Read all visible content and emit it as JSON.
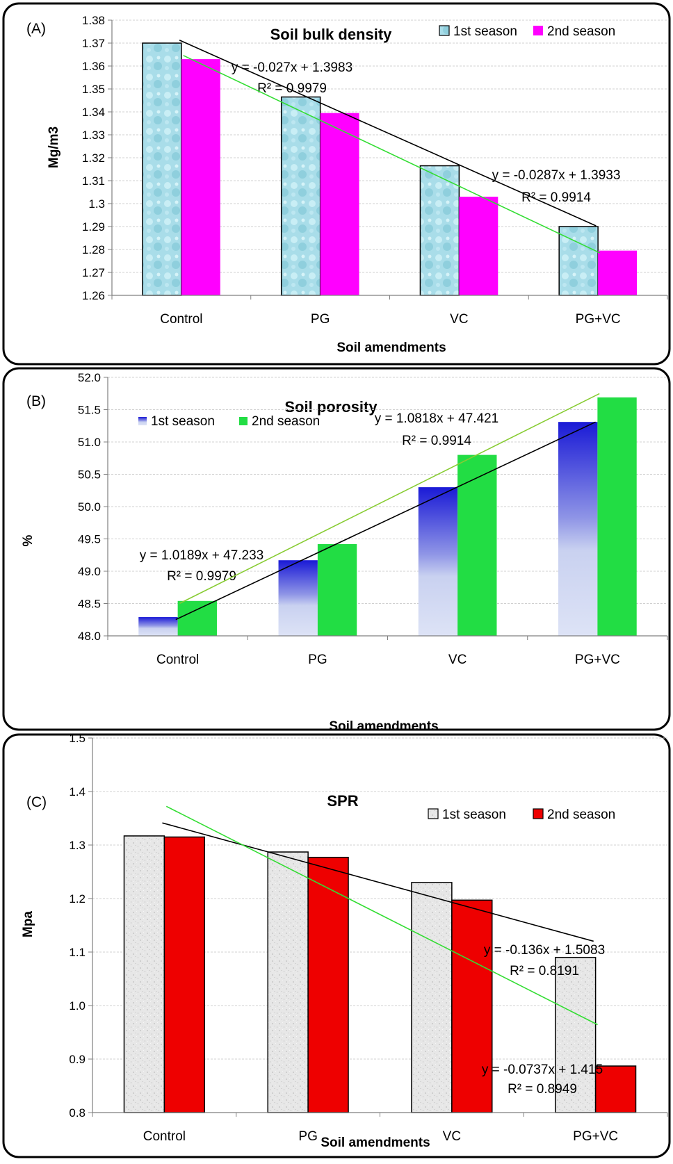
{
  "chart_data": [
    {
      "panel": "(A)",
      "type": "bar",
      "title": "Soil bulk density",
      "xlabel": "Soil amendments",
      "ylabel": "Mg/m3",
      "categories": [
        "Control",
        "PG",
        "VC",
        "PG+VC"
      ],
      "ylim": [
        1.26,
        1.38
      ],
      "yticks": [
        "1.26",
        "1.27",
        "1.28",
        "1.29",
        "1.3",
        "1.31",
        "1.32",
        "1.33",
        "1.34",
        "1.35",
        "1.36",
        "1.37",
        "1.38"
      ],
      "legend": "top-right",
      "series": [
        {
          "name": "1st season",
          "values": [
            1.37,
            1.3465,
            1.3165,
            1.29
          ],
          "color": "#a8dde8"
        },
        {
          "name": "2nd season",
          "values": [
            1.363,
            1.3395,
            1.303,
            1.2795
          ],
          "color": "#ff00ff"
        }
      ],
      "trendlines": [
        {
          "equation": "y = -0.027x + 1.3983",
          "r2": "R² = 0.9979",
          "slope": -0.027,
          "intercept": 1.3983,
          "color": "#000000"
        },
        {
          "equation": "y = -0.0287x + 1.3933",
          "r2": "R² = 0.9914",
          "slope": -0.0287,
          "intercept": 1.3933,
          "color": "#33dd33"
        }
      ]
    },
    {
      "panel": "(B)",
      "type": "bar",
      "title": "Soil porosity",
      "xlabel": "Soil amendments",
      "ylabel": "%",
      "categories": [
        "Control",
        "PG",
        "VC",
        "PG+VC"
      ],
      "ylim": [
        48.0,
        52.0
      ],
      "yticks": [
        "48.0",
        "48.5",
        "49.0",
        "49.5",
        "50.0",
        "50.5",
        "51.0",
        "51.5",
        "52.0"
      ],
      "legend": "top-left",
      "series": [
        {
          "name": "1st season",
          "values": [
            48.29,
            49.17,
            50.3,
            51.31
          ],
          "color": "#2222cc"
        },
        {
          "name": "2nd season",
          "values": [
            48.54,
            49.42,
            50.8,
            51.69
          ],
          "color": "#22dd44"
        }
      ],
      "trendlines": [
        {
          "equation": "y = 1.0189x + 47.233",
          "r2": "R² = 0.9979",
          "slope": 1.0189,
          "intercept": 47.233,
          "color": "#000000"
        },
        {
          "equation": "y = 1.0818x + 47.421",
          "r2": "R² = 0.9914",
          "slope": 1.0818,
          "intercept": 47.421,
          "color": "#88cc33"
        }
      ]
    },
    {
      "panel": "(C)",
      "type": "bar",
      "title": "SPR",
      "xlabel": "Soil amendments",
      "ylabel": "Mpa",
      "categories": [
        "Control",
        "PG",
        "VC",
        "PG+VC"
      ],
      "ylim": [
        0.8,
        1.5
      ],
      "yticks": [
        "0.8",
        "0.9",
        "1.0",
        "1.1",
        "1.2",
        "1.3",
        "1.4",
        "1.5"
      ],
      "legend": "top-right",
      "series": [
        {
          "name": "1st season",
          "values": [
            1.317,
            1.287,
            1.23,
            1.09
          ],
          "color": "#e6e6e6"
        },
        {
          "name": "2nd season",
          "values": [
            1.315,
            1.277,
            1.197,
            0.887
          ],
          "color": "#ee0000"
        }
      ],
      "trendlines": [
        {
          "equation": "y = -0.0737x + 1.415",
          "r2": "R² = 0.8949",
          "slope": -0.0737,
          "intercept": 1.415,
          "color": "#000000"
        },
        {
          "equation": "y = -0.136x + 1.5083",
          "r2": "R² = 0.8191",
          "slope": -0.136,
          "intercept": 1.5083,
          "color": "#33dd33"
        }
      ]
    }
  ]
}
